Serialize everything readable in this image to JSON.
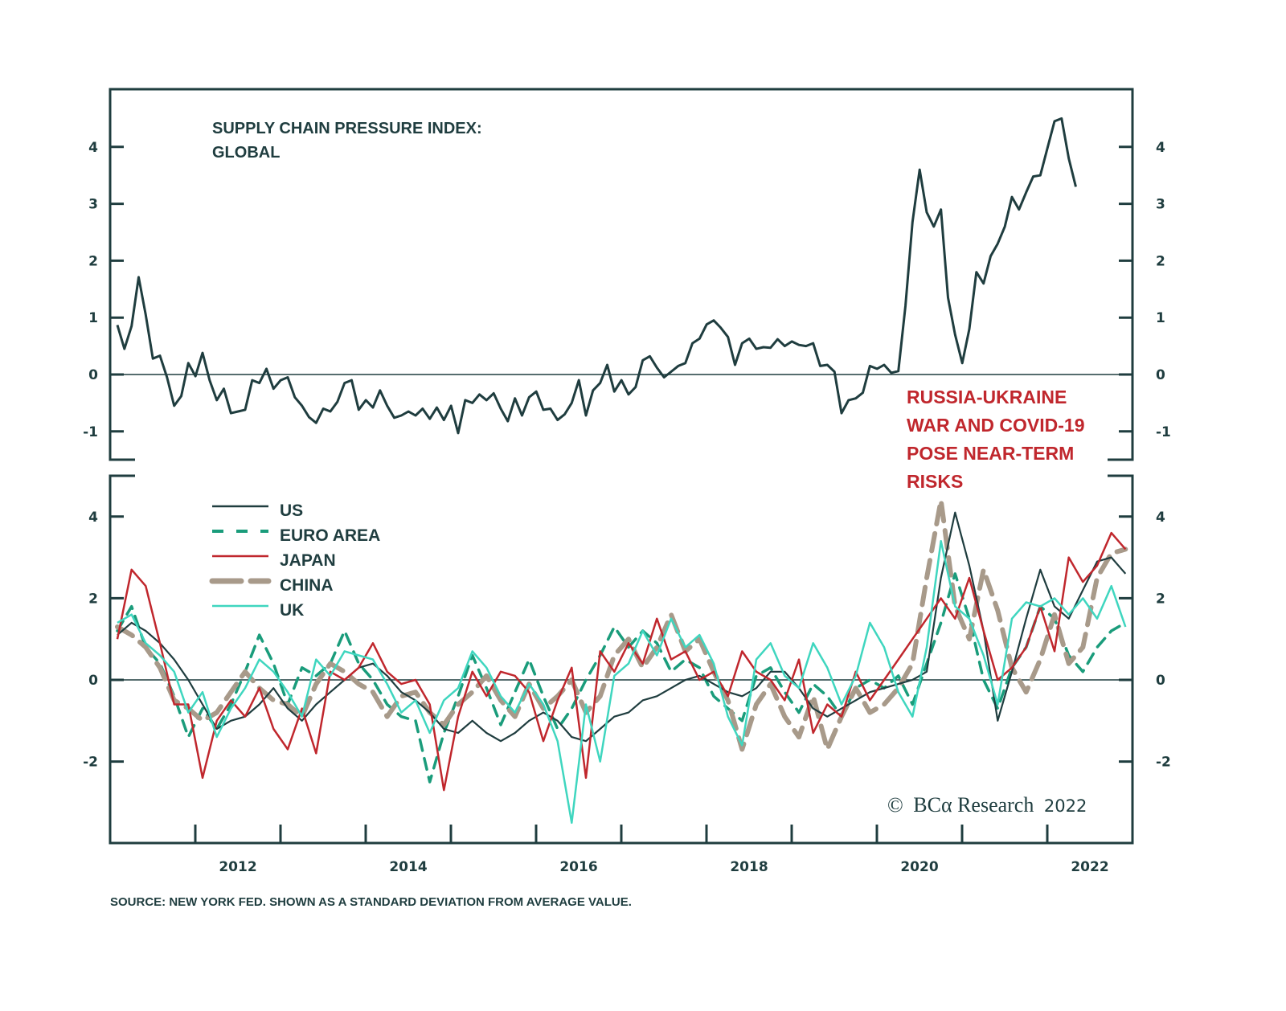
{
  "chart_data": [
    {
      "type": "line",
      "panel": "top",
      "title": "SUPPLY CHAIN PRESSURE INDEX: GLOBAL",
      "title_lines": [
        "SUPPLY CHAIN PRESSURE INDEX:",
        "GLOBAL"
      ],
      "xlabel": "",
      "ylabel": "",
      "ylim": [
        -1.5,
        5.0
      ],
      "yticks": [
        -1,
        0,
        1,
        2,
        3,
        4
      ],
      "x_start": 2011.0,
      "x_step_months": 1,
      "grid": false,
      "zero_line": true,
      "series": [
        {
          "name": "GLOBAL",
          "color": "#1f3d3f",
          "values": [
            0.87,
            0.45,
            0.85,
            1.71,
            1.05,
            0.28,
            0.33,
            -0.05,
            -0.55,
            -0.38,
            0.2,
            -0.03,
            0.38,
            -0.1,
            -0.45,
            -0.25,
            -0.68,
            -0.65,
            -0.62,
            -0.1,
            -0.15,
            0.1,
            -0.25,
            -0.1,
            -0.05,
            -0.4,
            -0.55,
            -0.75,
            -0.85,
            -0.6,
            -0.65,
            -0.48,
            -0.15,
            -0.1,
            -0.62,
            -0.45,
            -0.58,
            -0.28,
            -0.55,
            -0.76,
            -0.72,
            -0.65,
            -0.72,
            -0.6,
            -0.78,
            -0.58,
            -0.8,
            -0.55,
            -1.03,
            -0.45,
            -0.5,
            -0.35,
            -0.45,
            -0.33,
            -0.6,
            -0.82,
            -0.42,
            -0.72,
            -0.4,
            -0.3,
            -0.62,
            -0.6,
            -0.8,
            -0.7,
            -0.5,
            -0.1,
            -0.72,
            -0.28,
            -0.15,
            0.17,
            -0.3,
            -0.1,
            -0.35,
            -0.22,
            0.25,
            0.32,
            0.12,
            -0.05,
            0.05,
            0.15,
            0.2,
            0.55,
            0.63,
            0.88,
            0.95,
            0.82,
            0.66,
            0.17,
            0.55,
            0.63,
            0.45,
            0.48,
            0.47,
            0.62,
            0.5,
            0.58,
            0.52,
            0.5,
            0.55,
            0.15,
            0.17,
            0.05,
            -0.68,
            -0.45,
            -0.42,
            -0.32,
            0.15,
            0.1,
            0.17,
            0.03,
            0.06,
            1.2,
            2.68,
            3.6,
            2.85,
            2.6,
            2.9,
            1.35,
            0.7,
            0.2,
            0.8,
            1.8,
            1.6,
            2.08,
            2.3,
            2.6,
            3.12,
            2.9,
            3.2,
            3.48,
            3.5,
            3.98,
            4.45,
            4.5,
            3.8,
            3.3
          ]
        }
      ],
      "annotation": {
        "text_lines": [
          "RUSSIA-UKRAINE",
          "WAR AND COVID-19",
          "POSE NEAR-TERM",
          "RISKS"
        ],
        "color": "#c0272d"
      }
    },
    {
      "type": "line",
      "panel": "bottom",
      "title": "",
      "xlabel": "",
      "ylabel": "",
      "ylim": [
        -4.0,
        5.0
      ],
      "yticks": [
        -2,
        0,
        2,
        4
      ],
      "x_start": 2011.0,
      "x_step_months": 2,
      "grid": false,
      "zero_line": true,
      "legend": "top-left",
      "series": [
        {
          "name": "US",
          "color": "#1f3d3f",
          "style": "solid",
          "values": [
            1.1,
            1.4,
            1.2,
            0.9,
            0.5,
            0.0,
            -0.6,
            -1.2,
            -1.0,
            -0.9,
            -0.6,
            -0.2,
            -0.7,
            -1.0,
            -0.6,
            -0.3,
            0.0,
            0.3,
            0.4,
            0.1,
            -0.3,
            -0.5,
            -0.8,
            -1.2,
            -1.3,
            -1.0,
            -1.3,
            -1.5,
            -1.3,
            -1.0,
            -0.8,
            -1.0,
            -1.4,
            -1.5,
            -1.2,
            -0.9,
            -0.8,
            -0.5,
            -0.4,
            -0.2,
            0.0,
            0.1,
            -0.1,
            -0.3,
            -0.4,
            -0.2,
            0.2,
            0.2,
            -0.2,
            -0.7,
            -0.9,
            -0.7,
            -0.5,
            -0.3,
            -0.2,
            -0.1,
            0.0,
            0.2,
            2.5,
            4.1,
            2.8,
            1.2,
            -1.0,
            0.2,
            1.5,
            2.7,
            1.8,
            1.5,
            2.2,
            2.9,
            3.0,
            2.6
          ]
        },
        {
          "name": "EURO AREA",
          "color": "#1a9c7b",
          "style": "dashed",
          "values": [
            1.2,
            1.8,
            0.8,
            0.4,
            -0.4,
            -1.4,
            -0.7,
            -1.2,
            -0.6,
            0.2,
            1.1,
            0.4,
            -0.6,
            0.3,
            0.1,
            0.4,
            1.2,
            0.4,
            0.0,
            -0.6,
            -0.9,
            -1.0,
            -2.5,
            -1.3,
            -0.4,
            0.6,
            -0.2,
            -1.1,
            -0.3,
            0.5,
            -0.4,
            -1.2,
            -0.7,
            0.0,
            0.6,
            1.3,
            0.8,
            1.2,
            0.9,
            0.2,
            0.5,
            0.3,
            -0.4,
            -0.7,
            -1.0,
            0.1,
            0.3,
            -0.3,
            -0.8,
            -0.1,
            -0.4,
            -0.9,
            -0.2,
            0.0,
            -0.2,
            0.1,
            -0.6,
            0.4,
            1.4,
            2.6,
            1.5,
            0.0,
            -0.7,
            0.3,
            0.8,
            1.8,
            1.5,
            0.6,
            0.2,
            0.8,
            1.2,
            1.4
          ]
        },
        {
          "name": "JAPAN",
          "color": "#c0272d",
          "style": "solid",
          "values": [
            1.0,
            2.7,
            2.3,
            0.9,
            -0.6,
            -0.6,
            -2.4,
            -1.0,
            -0.5,
            -0.9,
            -0.2,
            -1.2,
            -1.7,
            -0.7,
            -1.8,
            0.2,
            0.0,
            0.3,
            0.9,
            0.2,
            -0.1,
            0.0,
            -0.6,
            -2.7,
            -0.9,
            0.2,
            -0.4,
            0.2,
            0.1,
            -0.3,
            -1.5,
            -0.5,
            0.3,
            -2.4,
            0.7,
            0.2,
            0.9,
            0.4,
            1.5,
            0.5,
            0.7,
            0.0,
            0.2,
            -0.4,
            0.7,
            0.2,
            0.0,
            -0.5,
            0.5,
            -1.3,
            -0.6,
            -0.9,
            0.2,
            -0.5,
            0.0,
            0.5,
            1.0,
            1.5,
            2.0,
            1.5,
            2.5,
            1.2,
            0.0,
            0.3,
            0.8,
            1.8,
            0.7,
            3.0,
            2.4,
            2.8,
            3.6,
            3.2
          ]
        },
        {
          "name": "CHINA",
          "color": "#a89a8a",
          "style": "dashed",
          "values": [
            1.3,
            1.1,
            0.8,
            0.3,
            -0.5,
            -0.7,
            -1.0,
            -0.8,
            -0.3,
            0.2,
            -0.2,
            -0.5,
            -0.6,
            -0.9,
            -0.1,
            0.4,
            0.2,
            -0.1,
            -0.3,
            -0.9,
            -0.4,
            -0.3,
            -0.8,
            -1.1,
            -0.6,
            -0.3,
            0.1,
            -0.5,
            -0.9,
            -0.1,
            -0.7,
            -0.4,
            0.0,
            -0.8,
            -0.4,
            0.6,
            1.0,
            0.3,
            0.8,
            1.6,
            0.7,
            1.0,
            0.2,
            -0.5,
            -1.7,
            -0.6,
            -0.1,
            -0.9,
            -1.4,
            -0.4,
            -1.7,
            -0.9,
            -0.2,
            -0.8,
            -0.6,
            -0.2,
            0.4,
            2.5,
            4.4,
            1.8,
            1.0,
            2.7,
            1.7,
            0.3,
            -0.3,
            0.5,
            1.6,
            0.4,
            0.8,
            2.5,
            3.1,
            3.2
          ]
        },
        {
          "name": "UK",
          "color": "#3fd6bf",
          "style": "solid",
          "values": [
            1.4,
            1.6,
            0.9,
            0.6,
            0.2,
            -0.8,
            -0.3,
            -1.4,
            -0.7,
            -0.2,
            0.5,
            0.2,
            -0.3,
            -0.9,
            0.5,
            0.1,
            0.7,
            0.6,
            0.5,
            -0.1,
            -0.8,
            -0.5,
            -1.3,
            -0.5,
            -0.2,
            0.7,
            0.3,
            -0.4,
            -0.8,
            -0.1,
            -0.6,
            -1.5,
            -3.5,
            -0.6,
            -2.0,
            0.1,
            0.4,
            1.2,
            0.6,
            1.5,
            0.8,
            1.1,
            0.4,
            -0.9,
            -1.6,
            0.5,
            0.9,
            0.1,
            -0.2,
            0.9,
            0.3,
            -0.6,
            0.1,
            1.4,
            0.8,
            -0.3,
            -0.9,
            0.8,
            3.4,
            1.8,
            1.5,
            0.6,
            -0.6,
            1.5,
            1.9,
            1.8,
            2.0,
            1.6,
            2.0,
            1.5,
            2.3,
            1.3
          ]
        }
      ]
    }
  ],
  "x_axis": {
    "tick_labels": [
      "2012",
      "2014",
      "2016",
      "2018",
      "2020",
      "2022"
    ]
  },
  "footer": {
    "source": "SOURCE: NEW YORK FED. SHOWN AS A STANDARD DEVIATION FROM AVERAGE VALUE.",
    "copyright_symbol": "©",
    "copyright_brand": "BCα Research",
    "copyright_year": "2022"
  }
}
